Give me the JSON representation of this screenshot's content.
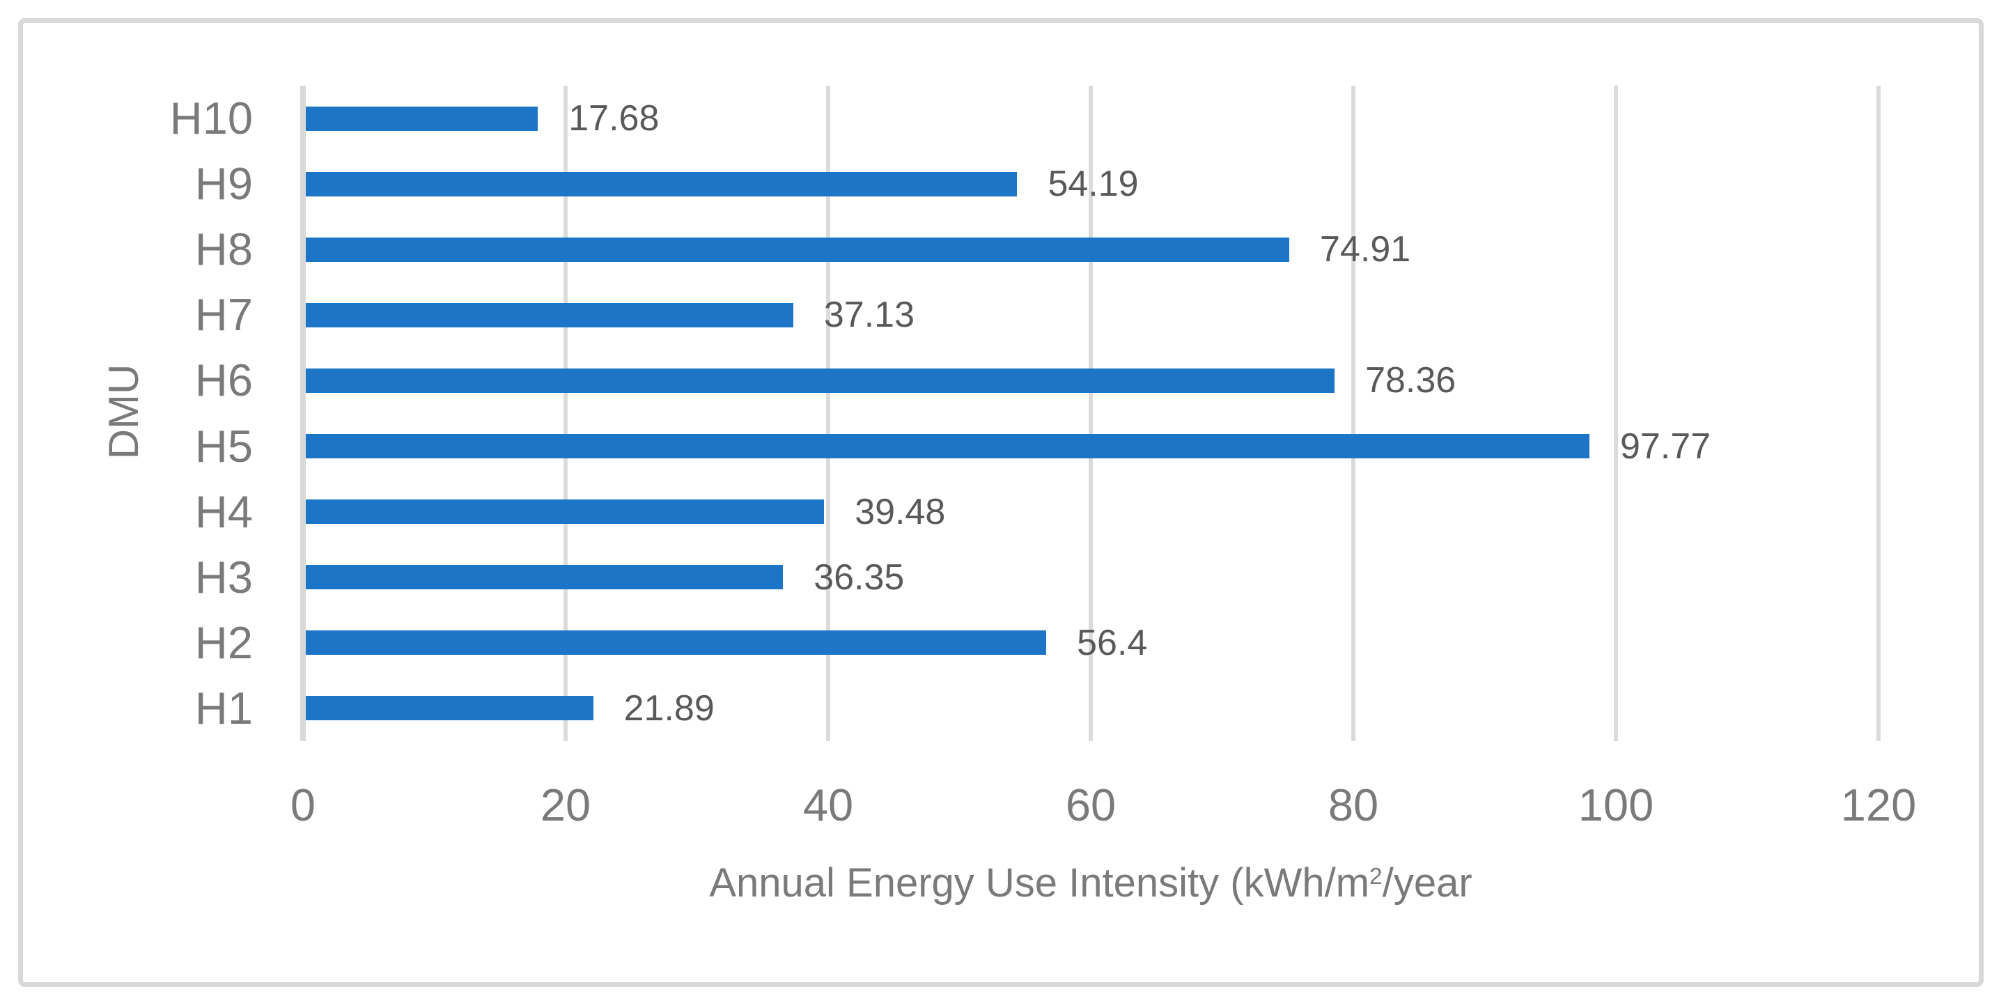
{
  "chart_data": {
    "type": "bar",
    "orientation": "horizontal",
    "title": "",
    "xlabel": "Annual Energy Use Intensity (kWh/m2/year",
    "xlabel_parts": {
      "prefix": "Annual Energy Use Intensity (kWh/m",
      "sup": "2",
      "suffix": "/year"
    },
    "ylabel": "DMU",
    "categories": [
      "H10",
      "H9",
      "H8",
      "H7",
      "H6",
      "H5",
      "H4",
      "H3",
      "H2",
      "H1"
    ],
    "values": [
      17.68,
      54.19,
      74.91,
      37.13,
      78.36,
      97.77,
      39.48,
      36.35,
      56.4,
      21.89
    ],
    "data_labels": [
      "17.68",
      "54.19",
      "74.91",
      "37.13",
      "78.36",
      "97.77",
      "39.48",
      "36.35",
      "56.4",
      "21.89"
    ],
    "xlim": [
      0,
      120
    ],
    "xticks": [
      0,
      20,
      40,
      60,
      80,
      100,
      120
    ],
    "grid": true,
    "legend": "none",
    "colors": {
      "bar": "#1C75C7",
      "gridline": "#DBDBDB",
      "axis_line": "#D9D9D9",
      "tick_label": "#7A7A7A",
      "category_label": "#7A7A7A",
      "data_label": "#595959",
      "axis_title": "#7A7A7A",
      "frame_border": "#D9D9D9",
      "background": "#FFFFFF"
    }
  }
}
